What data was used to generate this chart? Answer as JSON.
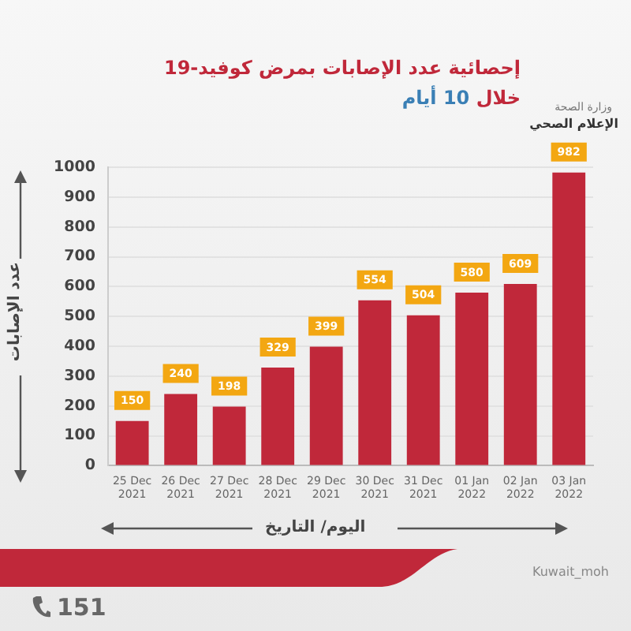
{
  "chart_data": {
    "type": "bar",
    "title": "إحصائية عدد الإصابات بمرض كوفيد-19",
    "subtitle": "خلال 10 أيام",
    "xlabel": "اليوم/ التاريخ",
    "ylabel": "عدد الإصابات",
    "annotations": [
      "وزارة الصحة",
      "الإعلام الصحي",
      "151",
      "Kuwait_moh"
    ],
    "categories": [
      "25 Dec 2021",
      "26 Dec 2021",
      "27 Dec 2021",
      "28 Dec 2021",
      "29 Dec 2021",
      "30 Dec 2021",
      "31 Dec 2021",
      "01 Jan 2022",
      "02 Jan 2022",
      "03 Jan 2022"
    ],
    "values": [
      150,
      240,
      198,
      329,
      399,
      554,
      504,
      580,
      609,
      982
    ],
    "color": "#c0283a",
    "ylim": [
      0,
      1000
    ],
    "yticks": [
      0,
      100,
      200,
      300,
      400,
      500,
      600,
      700,
      800,
      900,
      1000
    ],
    "grid": "y",
    "data_labels": true
  }
}
